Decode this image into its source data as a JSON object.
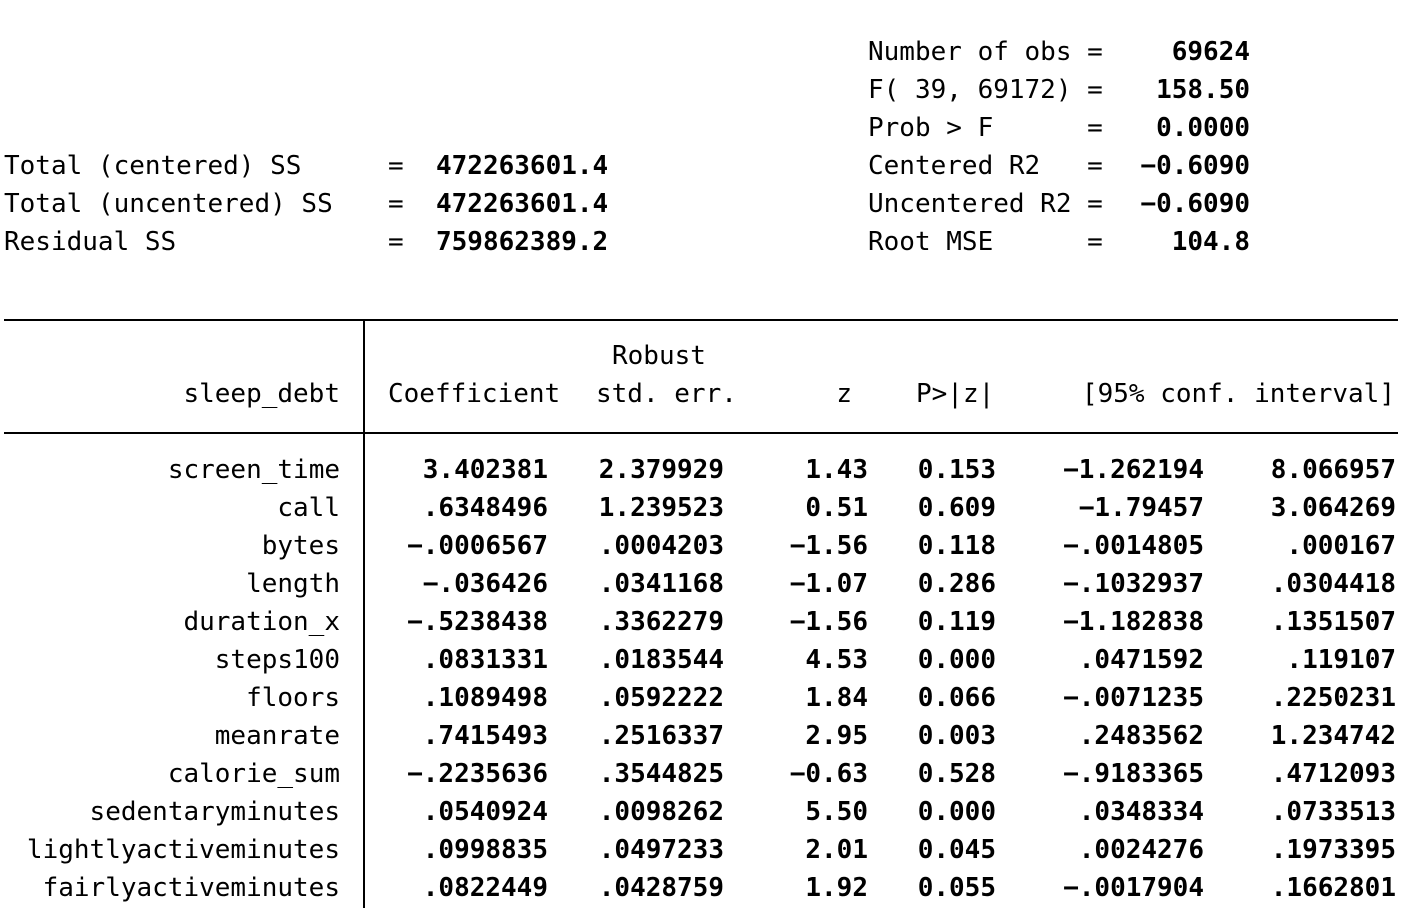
{
  "header_right": [
    {
      "label": "Number of obs =",
      "value": "69624"
    },
    {
      "label": "F( 39, 69172) =",
      "value": "158.50"
    },
    {
      "label": "Prob > F      =",
      "value": "0.0000"
    },
    {
      "label": "Centered R2   =",
      "value": "-0.6090"
    },
    {
      "label": "Uncentered R2 =",
      "value": "-0.6090"
    },
    {
      "label": "Root MSE      =",
      "value": "104.8"
    }
  ],
  "header_left": [
    {
      "label": "Total (centered) SS",
      "eq": "=",
      "value": "472263601.4"
    },
    {
      "label": "Total (uncentered) SS",
      "eq": "=",
      "value": "472263601.4"
    },
    {
      "label": "Residual SS",
      "eq": "=",
      "value": "759862389.2"
    }
  ],
  "table": {
    "depvar": "sleep_debt",
    "robust_label": "Robust",
    "columns": [
      "Coefficient",
      "std. err.",
      "z",
      "P>|z|",
      "[95% conf. interval]"
    ],
    "rows": [
      {
        "name": "screen_time",
        "coef": "3.402381",
        "se": "2.379929",
        "z": "1.43",
        "p": "0.153",
        "lo": "-1.262194",
        "hi": "8.066957"
      },
      {
        "name": "call",
        "coef": ".6348496",
        "se": "1.239523",
        "z": "0.51",
        "p": "0.609",
        "lo": "-1.79457",
        "hi": "3.064269"
      },
      {
        "name": "bytes",
        "coef": "-.0006567",
        "se": ".0004203",
        "z": "-1.56",
        "p": "0.118",
        "lo": "-.0014805",
        "hi": ".000167"
      },
      {
        "name": "length",
        "coef": "-.036426",
        "se": ".0341168",
        "z": "-1.07",
        "p": "0.286",
        "lo": "-.1032937",
        "hi": ".0304418"
      },
      {
        "name": "duration_x",
        "coef": "-.5238438",
        "se": ".3362279",
        "z": "-1.56",
        "p": "0.119",
        "lo": "-1.182838",
        "hi": ".1351507"
      },
      {
        "name": "steps100",
        "coef": ".0831331",
        "se": ".0183544",
        "z": "4.53",
        "p": "0.000",
        "lo": ".0471592",
        "hi": ".119107"
      },
      {
        "name": "floors",
        "coef": ".1089498",
        "se": ".0592222",
        "z": "1.84",
        "p": "0.066",
        "lo": "-.0071235",
        "hi": ".2250231"
      },
      {
        "name": "meanrate",
        "coef": ".7415493",
        "se": ".2516337",
        "z": "2.95",
        "p": "0.003",
        "lo": ".2483562",
        "hi": "1.234742"
      },
      {
        "name": "calorie_sum",
        "coef": "-.2235636",
        "se": ".3544825",
        "z": "-0.63",
        "p": "0.528",
        "lo": "-.9183365",
        "hi": ".4712093"
      },
      {
        "name": "sedentaryminutes",
        "coef": ".0540924",
        "se": ".0098262",
        "z": "5.50",
        "p": "0.000",
        "lo": ".0348334",
        "hi": ".0733513"
      },
      {
        "name": "lightlyactiveminutes",
        "coef": ".0998835",
        "se": ".0497233",
        "z": "2.01",
        "p": "0.045",
        "lo": ".0024276",
        "hi": ".1973395"
      },
      {
        "name": "fairlyactiveminutes",
        "coef": ".0822449",
        "se": ".0428759",
        "z": "1.92",
        "p": "0.055",
        "lo": "-.0017904",
        "hi": ".1662801"
      }
    ]
  }
}
